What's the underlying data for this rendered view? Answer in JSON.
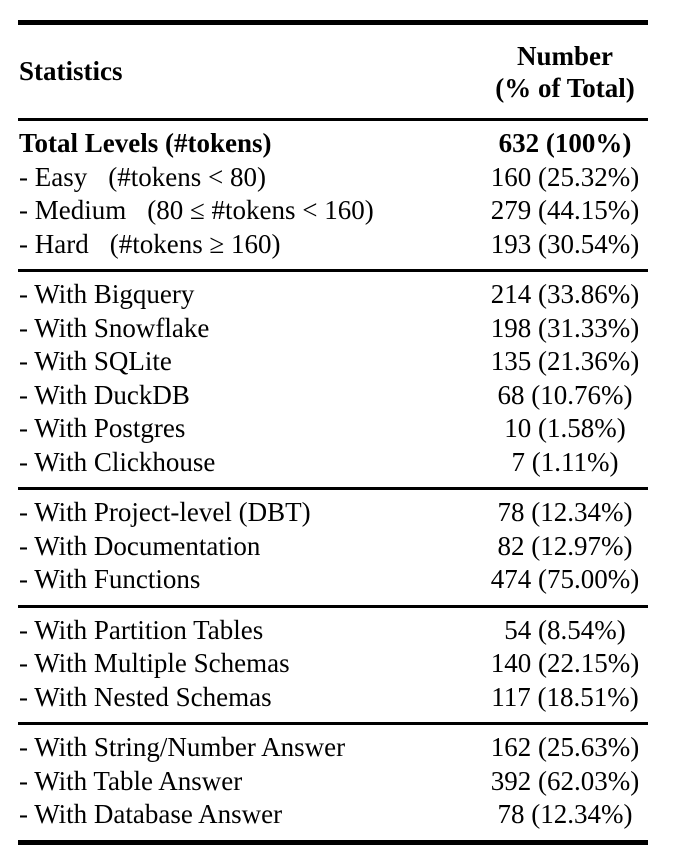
{
  "table": {
    "header": {
      "col1": "Statistics",
      "col2_line1": "Number",
      "col2_line2": "(% of Total)"
    },
    "sections": [
      {
        "name": "levels",
        "rows": [
          {
            "label": "Total Levels (#tokens)",
            "bold": true,
            "value": "632 (100%)"
          },
          {
            "label": "- Easy",
            "condition": "(#tokens < 80)",
            "value": "160 (25.32%)"
          },
          {
            "label": "- Medium",
            "condition": "(80 ≤ #tokens < 160)",
            "value": "279 (44.15%)"
          },
          {
            "label": "- Hard",
            "condition": "(#tokens ≥ 160)",
            "value": "193 (30.54%)"
          }
        ]
      },
      {
        "name": "databases",
        "rows": [
          {
            "label": "- With Bigquery",
            "value": "214 (33.86%)"
          },
          {
            "label": "- With Snowflake",
            "value": "198 (31.33%)"
          },
          {
            "label": "- With SQLite",
            "value": "135 (21.36%)"
          },
          {
            "label": "- With DuckDB",
            "value": "68 (10.76%)"
          },
          {
            "label": "- With Postgres",
            "value": "10 (1.58%)"
          },
          {
            "label": "- With Clickhouse",
            "value": "7 (1.11%)"
          }
        ]
      },
      {
        "name": "features",
        "rows": [
          {
            "label": "- With Project-level (DBT)",
            "value": "78 (12.34%)"
          },
          {
            "label": "- With Documentation",
            "value": "82 (12.97%)"
          },
          {
            "label": "- With Functions",
            "value": "474 (75.00%)"
          }
        ]
      },
      {
        "name": "schemas",
        "rows": [
          {
            "label": "- With Partition Tables",
            "value": "54 (8.54%)"
          },
          {
            "label": "- With Multiple Schemas",
            "value": "140 (22.15%)"
          },
          {
            "label": "- With Nested Schemas",
            "value": "117 (18.51%)"
          }
        ]
      },
      {
        "name": "answers",
        "rows": [
          {
            "label": "- With String/Number Answer",
            "value": "162 (25.63%)"
          },
          {
            "label": "- With Table Answer",
            "value": "392 (62.03%)"
          },
          {
            "label": "- With Database Answer",
            "value": "78 (12.34%)"
          }
        ]
      }
    ]
  },
  "colors": {
    "text": "#000000",
    "background": "#ffffff",
    "rule": "#000000"
  }
}
